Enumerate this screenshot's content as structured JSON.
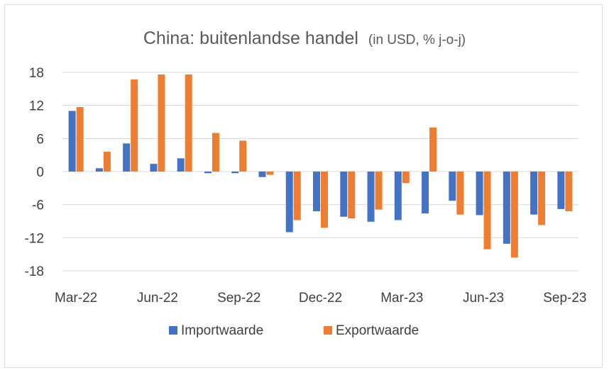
{
  "chart_data": {
    "type": "bar",
    "title": "China: buitenlandse handel",
    "subtitle": "(in USD, % j-o-j)",
    "xlabel": "",
    "ylabel": "",
    "ylim": [
      -18,
      18
    ],
    "yticks": [
      18,
      12,
      6,
      0,
      -6,
      -12,
      -18
    ],
    "xtick_labels": [
      "Mar-22",
      "Jun-22",
      "Sep-22",
      "Dec-22",
      "Mar-23",
      "Jun-23",
      "Sep-23"
    ],
    "categories": [
      "Mar-22",
      "Apr-22",
      "May-22",
      "Jun-22",
      "Jul-22",
      "Aug-22",
      "Sep-22",
      "Oct-22",
      "Nov-22",
      "Dec-22",
      "Jan-23",
      "Feb-23",
      "Mar-23",
      "Apr-23",
      "May-23",
      "Jun-23",
      "Jul-23",
      "Aug-23",
      "Sep-23"
    ],
    "series": [
      {
        "name": "Importwaarde",
        "color": "#4472c4",
        "values": [
          11.0,
          0.6,
          5.1,
          1.4,
          2.4,
          -0.3,
          -0.3,
          -1.0,
          -11.0,
          -7.2,
          -8.2,
          -9.1,
          -8.8,
          -7.6,
          -5.3,
          -7.9,
          -13.1,
          -7.8,
          -6.8
        ]
      },
      {
        "name": "Exportwaarde",
        "color": "#ed7d31",
        "values": [
          11.7,
          3.6,
          16.7,
          17.6,
          17.6,
          7.0,
          5.6,
          -0.6,
          -8.8,
          -10.2,
          -8.5,
          -6.9,
          -2.1,
          8.0,
          -7.8,
          -14.1,
          -15.6,
          -9.7,
          -7.2
        ]
      }
    ],
    "grid": "horizontal",
    "legend": "bottom"
  }
}
